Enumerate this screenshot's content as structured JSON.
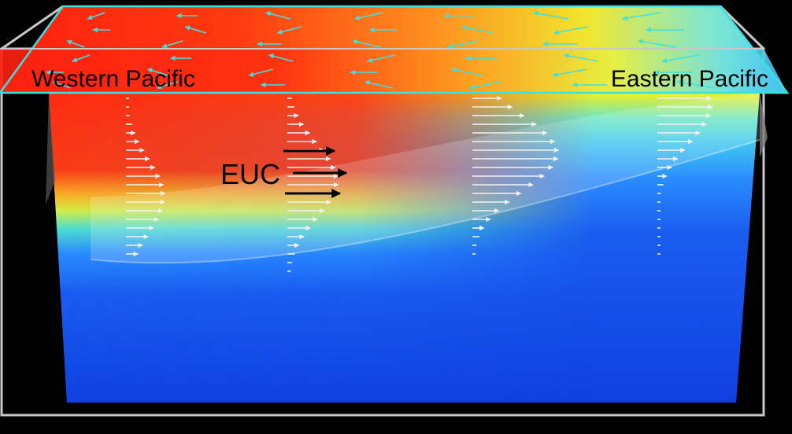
{
  "labels": {
    "west": "Western Pacific",
    "east": "Eastern Pacific",
    "current": "EUC"
  },
  "colors": {
    "background": "#000000",
    "warm": "#ff2a10",
    "cool": "#1548e8",
    "surface_arrows": "#3fe0e0",
    "profile_arrows": "#f2f2f2",
    "euc_arrows": "#000000",
    "frame": "#c8c8c8"
  }
}
